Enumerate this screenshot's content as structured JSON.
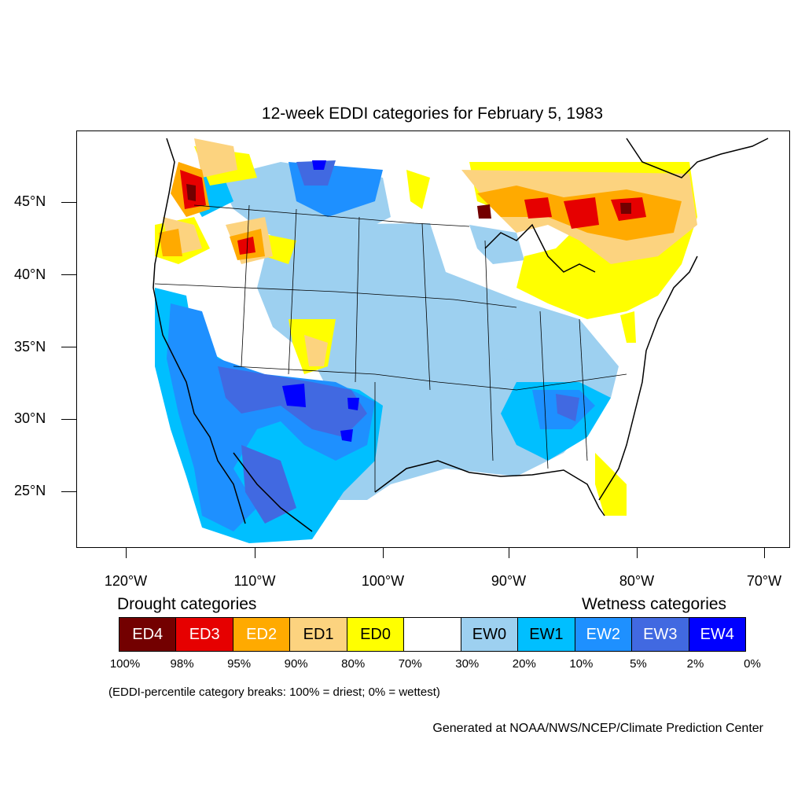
{
  "title": "12-week EDDI categories for February 5, 1983",
  "lat_labels": [
    "45°N",
    "40°N",
    "35°N",
    "30°N",
    "25°N"
  ],
  "lon_labels": [
    "120°W",
    "110°W",
    "100°W",
    "90°W",
    "80°W",
    "70°W"
  ],
  "legend": {
    "drought_heading": "Drought categories",
    "wetness_heading": "Wetness categories",
    "categories": [
      {
        "label": "ED4",
        "color": "#730000",
        "text_color": "#ffffff"
      },
      {
        "label": "ED3",
        "color": "#e60000",
        "text_color": "#ffffff"
      },
      {
        "label": "ED2",
        "color": "#ffaa00",
        "text_color": "#ffffff"
      },
      {
        "label": "ED1",
        "color": "#fcd37f",
        "text_color": "#000000"
      },
      {
        "label": "ED0",
        "color": "#ffff00",
        "text_color": "#000000"
      },
      {
        "label": "",
        "color": "#ffffff",
        "text_color": "#000000"
      },
      {
        "label": "EW0",
        "color": "#9dd0f0",
        "text_color": "#000000"
      },
      {
        "label": "EW1",
        "color": "#00bfff",
        "text_color": "#000000"
      },
      {
        "label": "EW2",
        "color": "#1e90ff",
        "text_color": "#ffffff"
      },
      {
        "label": "EW3",
        "color": "#4169e1",
        "text_color": "#ffffff"
      },
      {
        "label": "EW4",
        "color": "#0000ff",
        "text_color": "#ffffff"
      }
    ],
    "percentiles": [
      "100%",
      "98%",
      "95%",
      "90%",
      "80%",
      "70%",
      "30%",
      "20%",
      "10%",
      "5%",
      "2%",
      "0%"
    ]
  },
  "note": "(EDDI-percentile category breaks: 100% = driest; 0% = wettest)",
  "credit": "Generated at NOAA/NWS/NCEP/Climate Prediction Center",
  "map": {
    "region": "Contiguous United States",
    "dominant_patterns": [
      {
        "area": "Southwest and Southern Plains",
        "category": "EW2-EW4"
      },
      {
        "area": "Central Plains and Southeast",
        "category": "EW0-EW1"
      },
      {
        "area": "Great Lakes and Ontario",
        "category": "ED0-ED3"
      },
      {
        "area": "Pacific Northwest coast",
        "category": "ED2-ED4"
      },
      {
        "area": "Florida peninsula",
        "category": "ED0-ED1"
      }
    ]
  }
}
